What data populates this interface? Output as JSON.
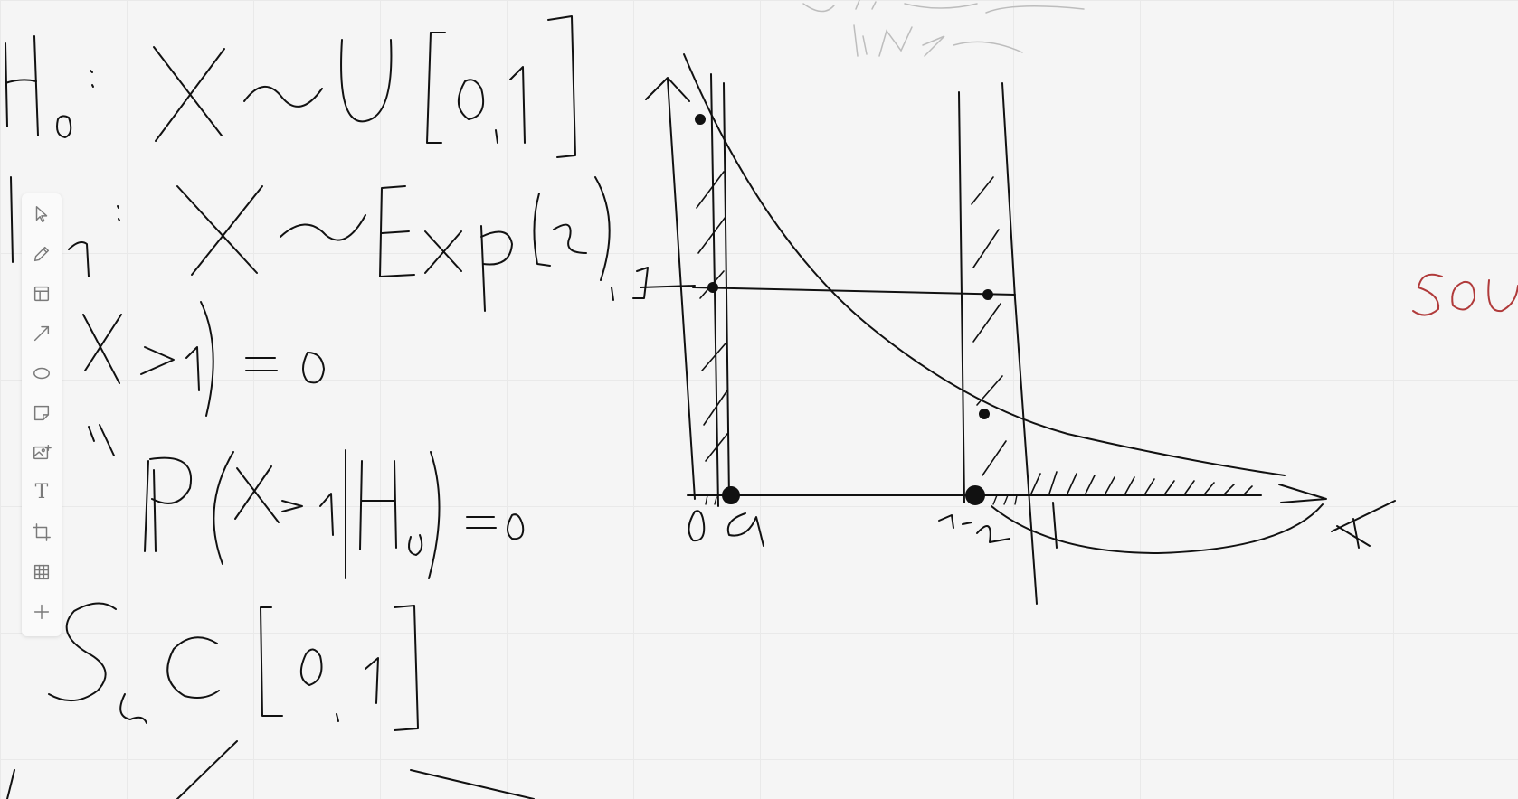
{
  "whiteboard": {
    "toolbar": {
      "tools": [
        {
          "name": "select-tool",
          "icon": "cursor-icon"
        },
        {
          "name": "pen-tool",
          "icon": "pencil-icon"
        },
        {
          "name": "frame-tool",
          "icon": "layout-icon"
        },
        {
          "name": "arrow-tool",
          "icon": "arrow-icon"
        },
        {
          "name": "ellipse-tool",
          "icon": "ellipse-icon"
        },
        {
          "name": "sticky-note-tool",
          "icon": "note-icon"
        },
        {
          "name": "image-tool",
          "icon": "image-icon"
        },
        {
          "name": "text-tool",
          "icon": "text-icon",
          "glyph": "T"
        },
        {
          "name": "crop-tool",
          "icon": "crop-icon"
        },
        {
          "name": "table-tool",
          "icon": "table-icon"
        },
        {
          "name": "more-tool",
          "icon": "plus-icon"
        }
      ]
    },
    "colors": {
      "background": "#f5f5f5",
      "grid": "#e9e9e9",
      "ink": "#111111",
      "faded_ink": "#bdbdbd",
      "accent_ink": "#b03a3a"
    }
  }
}
